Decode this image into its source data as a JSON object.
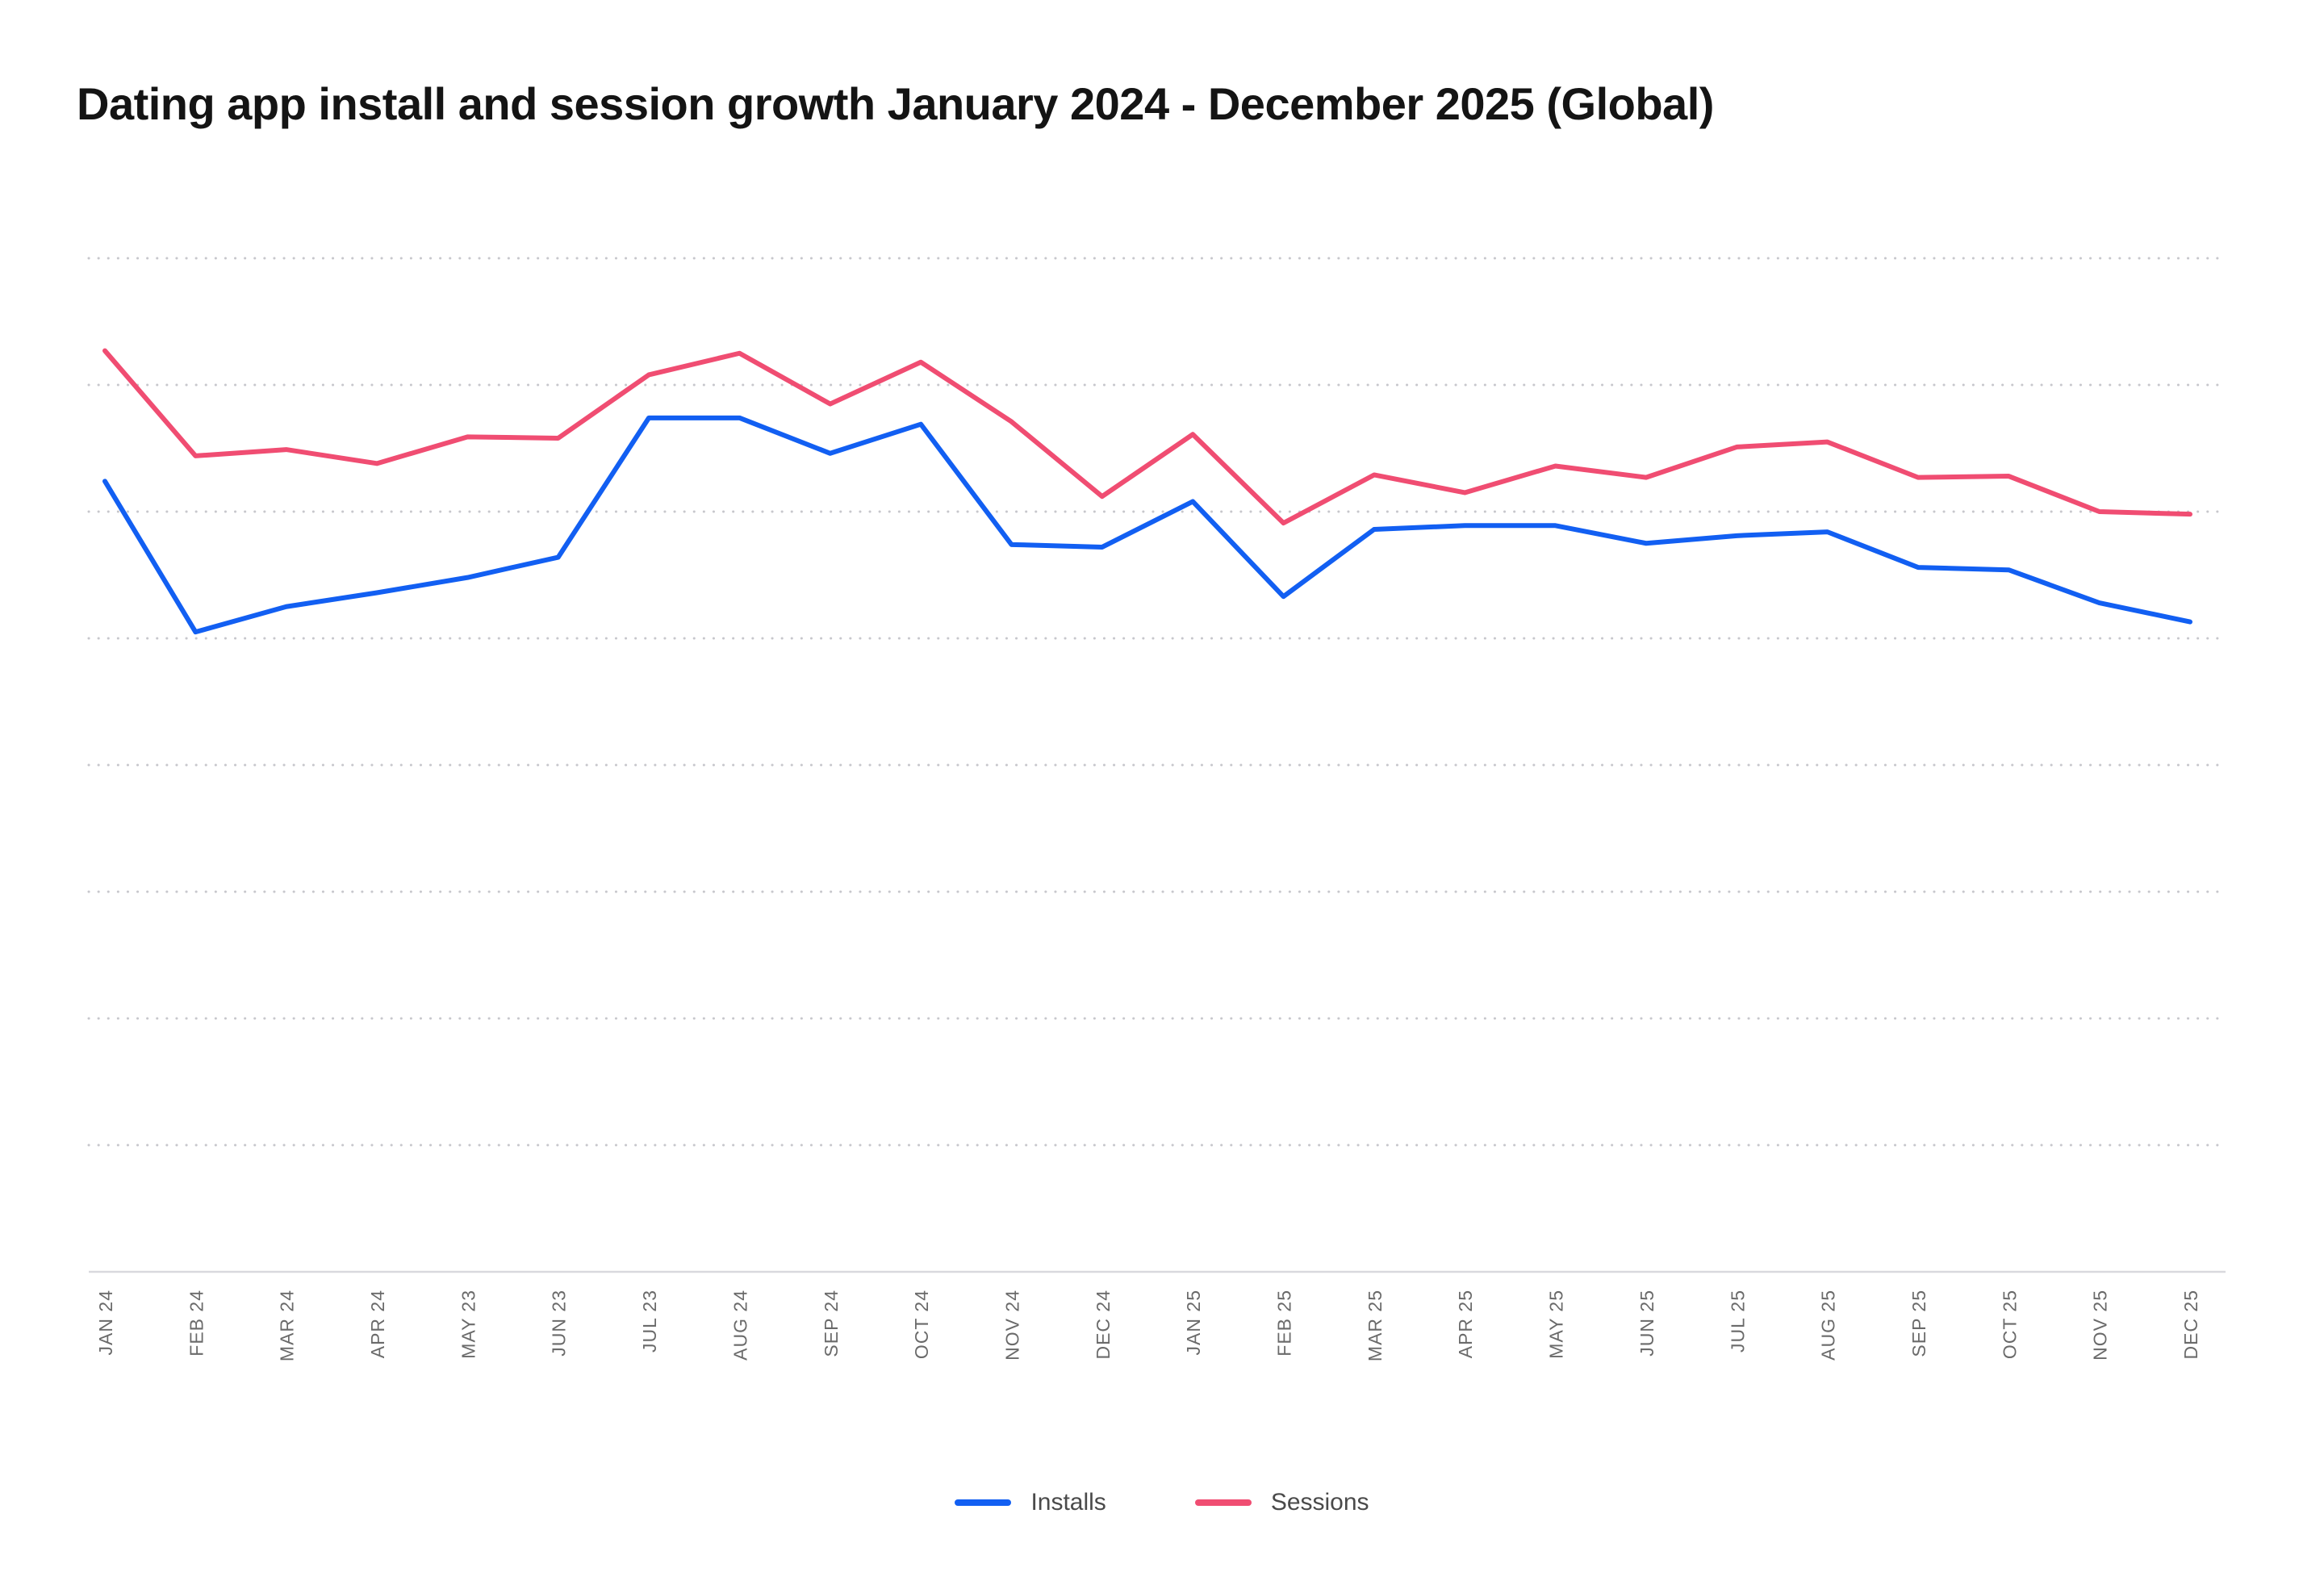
{
  "title": "Dating app install and session growth January 2024 - December 2025 (Global)",
  "colors": {
    "installs": "#125ff2",
    "sessions": "#f04d72",
    "grid": "#c7c7cc",
    "axis": "#d9d9de",
    "tick_label": "#6a6a6a",
    "legend_label": "#4a4a4a",
    "title": "#141414"
  },
  "chart_data": {
    "type": "line",
    "title": "Dating app install and session growth January 2024 - December 2025 (Global)",
    "xlabel": "",
    "ylabel": "",
    "ylim": [
      0,
      80
    ],
    "grid_step": 10,
    "grid_style": "dotted",
    "legend_position": "bottom",
    "categories": [
      "JAN 24",
      "FEB 24",
      "MAR 24",
      "APR 24",
      "MAY 23",
      "JUN 23",
      "JUL 23",
      "AUG 24",
      "SEP 24",
      "OCT 24",
      "NOV 24",
      "DEC 24",
      "JAN 25",
      "FEB 25",
      "MAR 25",
      "APR 25",
      "MAY 25",
      "JUN 25",
      "JUL 25",
      "AUG 25",
      "SEP 25",
      "OCT 25",
      "NOV 25",
      "DEC 25"
    ],
    "series": [
      {
        "name": "Installs",
        "color_key": "installs",
        "values": [
          62.4,
          50.5,
          52.5,
          53.6,
          54.8,
          56.4,
          67.4,
          67.4,
          64.6,
          66.9,
          57.4,
          57.2,
          60.8,
          53.3,
          58.6,
          58.9,
          58.9,
          57.5,
          58.1,
          58.4,
          55.6,
          55.4,
          52.8,
          51.3
        ]
      },
      {
        "name": "Sessions",
        "color_key": "sessions",
        "values": [
          72.7,
          64.4,
          64.9,
          63.8,
          65.9,
          65.8,
          70.8,
          72.5,
          68.5,
          71.8,
          67.1,
          61.2,
          66.1,
          59.1,
          62.9,
          61.5,
          63.6,
          62.7,
          65.1,
          65.5,
          62.7,
          62.8,
          60.0,
          59.8
        ]
      }
    ]
  }
}
